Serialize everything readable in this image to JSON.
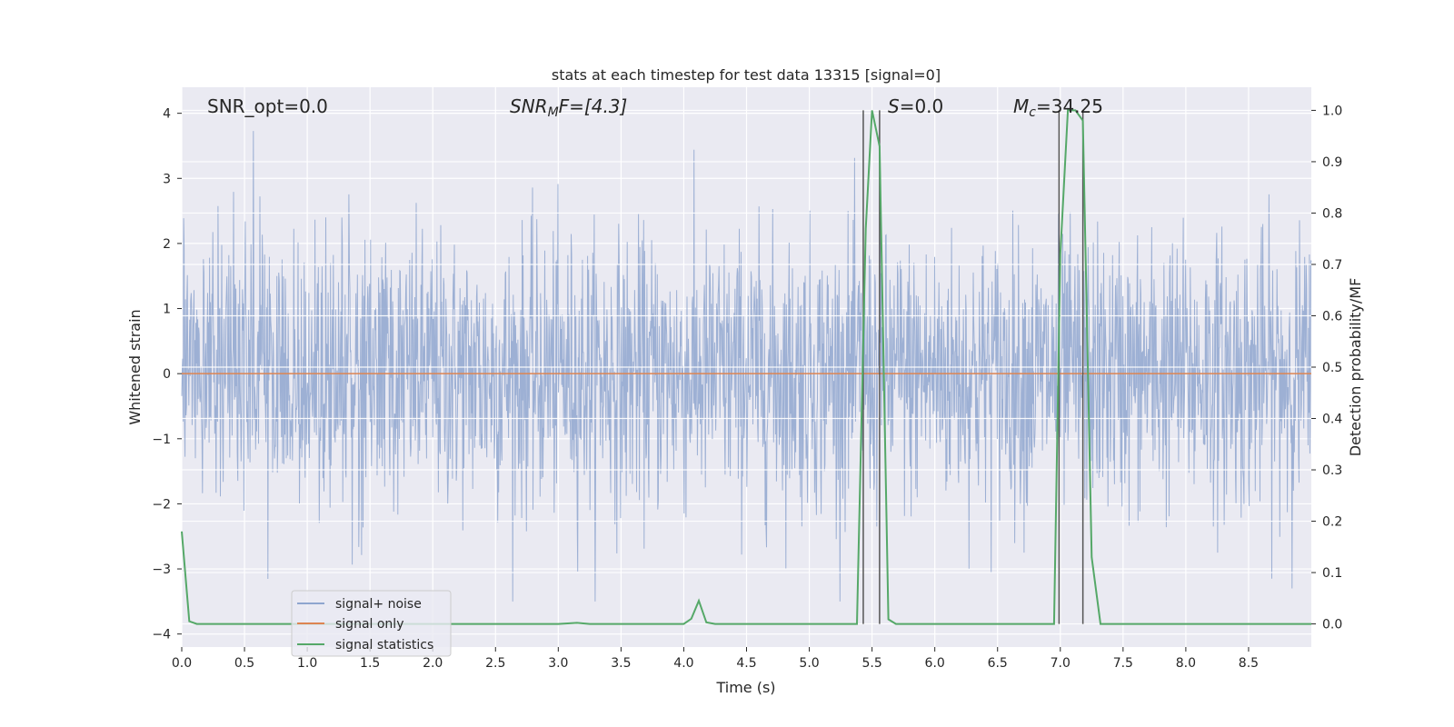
{
  "chart_data": {
    "type": "line",
    "title": "stats at each timestep for test data 13315 [signal=0]",
    "xlabel": "Time (s)",
    "ylabel": "Whitened strain",
    "y2label": "Detection probability/MF",
    "xlim": [
      0,
      9.0
    ],
    "ylim": [
      -4.2,
      4.4
    ],
    "y2lim": [
      -0.045,
      1.045
    ],
    "x_ticks": [
      "0.0",
      "0.5",
      "1.0",
      "1.5",
      "2.0",
      "2.5",
      "3.0",
      "3.5",
      "4.0",
      "4.5",
      "5.0",
      "5.5",
      "6.0",
      "6.5",
      "7.0",
      "7.5",
      "8.0",
      "8.5"
    ],
    "y_ticks": [
      "4",
      "3",
      "2",
      "1",
      "0",
      "−1",
      "−2",
      "−3",
      "−4"
    ],
    "y2_ticks": [
      "1.0",
      "0.9",
      "0.8",
      "0.7",
      "0.6",
      "0.5",
      "0.4",
      "0.3",
      "0.2",
      "0.1",
      "0.0"
    ],
    "grid": true,
    "legend_position": "lower-left",
    "annotations": {
      "snr_opt": "SNR_opt=0.0",
      "snr_mf_main": "SNR",
      "snr_mf_sub": "M",
      "snr_mf_rest": "F=[4.3]",
      "s_main": "S",
      "s_rest": "=0.0",
      "mc_main": "M",
      "mc_sub": "c",
      "mc_rest": "=34.25"
    },
    "vertical_lines_x": [
      5.43,
      5.56,
      6.99,
      7.18
    ],
    "series": [
      {
        "name": "signal+ noise",
        "color": "#8fa6cf",
        "description_level": "noise, approx. range -3.5 to 3.8"
      },
      {
        "name": "signal only",
        "color": "#dd8452",
        "x": [
          0,
          9.0
        ],
        "y": [
          0,
          0
        ]
      },
      {
        "name": "signal statistics",
        "color": "#55a868",
        "axis": "right",
        "x": [
          0.0,
          0.06,
          0.12,
          0.5,
          1.0,
          2.0,
          3.0,
          3.15,
          3.25,
          4.0,
          4.06,
          4.12,
          4.18,
          4.25,
          5.0,
          5.38,
          5.45,
          5.5,
          5.56,
          5.63,
          5.69,
          6.0,
          6.5,
          6.95,
          7.0,
          7.06,
          7.12,
          7.18,
          7.25,
          7.32,
          7.5,
          8.0,
          9.0
        ],
        "y": [
          0.18,
          0.005,
          0.0,
          0.0,
          0.0,
          0.0,
          0.0,
          0.002,
          0.0,
          0.0,
          0.01,
          0.045,
          0.003,
          0.0,
          0.0,
          0.0,
          0.77,
          1.0,
          0.93,
          0.009,
          0.0,
          0.0,
          0.0,
          0.0,
          0.72,
          1.0,
          1.0,
          0.98,
          0.13,
          0.0,
          0.0,
          0.0,
          0.0
        ]
      }
    ]
  }
}
